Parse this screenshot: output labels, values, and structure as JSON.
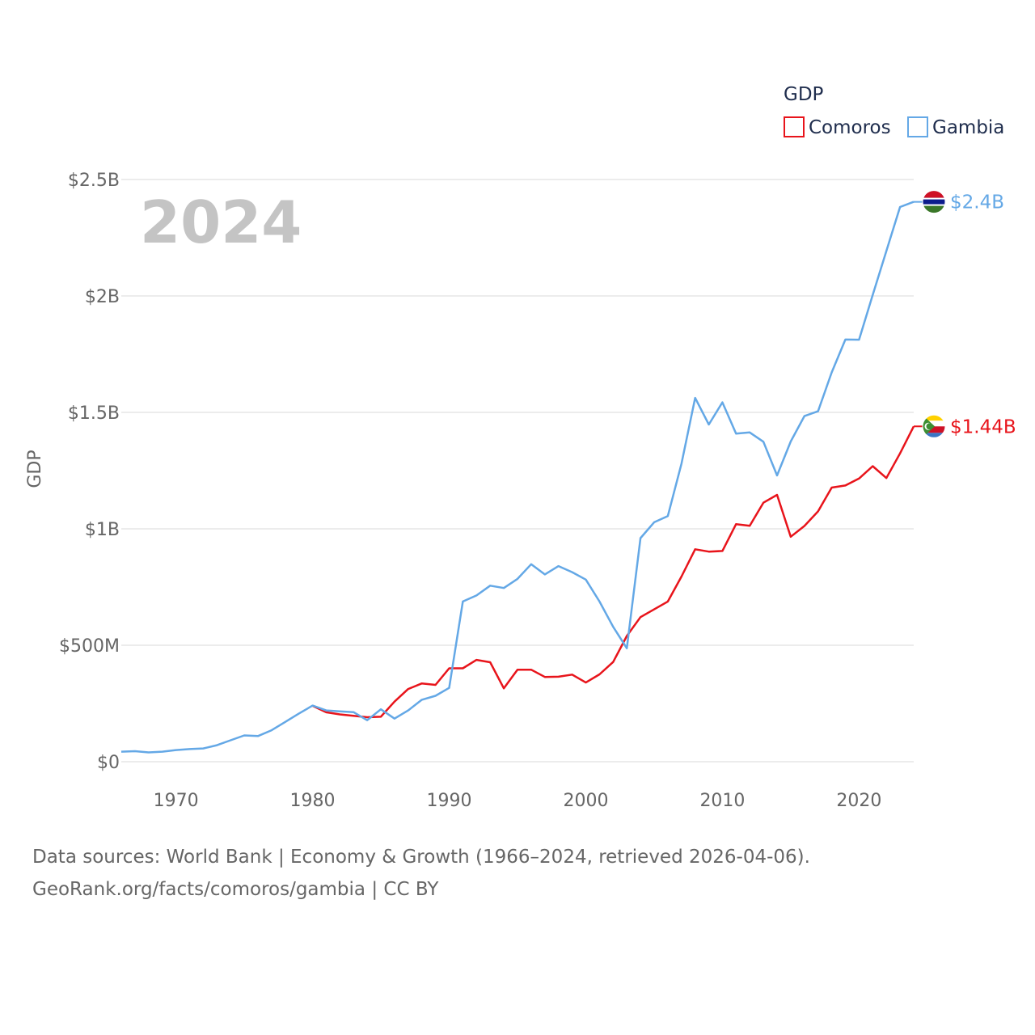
{
  "chart_data": {
    "type": "line",
    "title": "GDP",
    "ylabel": "GDP",
    "year_label": "2024",
    "ylim": [
      0,
      2500000000
    ],
    "xlim": [
      1966,
      2024
    ],
    "y_ticks": [
      {
        "value": 0,
        "label": "$0"
      },
      {
        "value": 500000000,
        "label": "$500M"
      },
      {
        "value": 1000000000,
        "label": "$1B"
      },
      {
        "value": 1500000000,
        "label": "$1.5B"
      },
      {
        "value": 2000000000,
        "label": "$2B"
      },
      {
        "value": 2500000000,
        "label": "$2.5B"
      }
    ],
    "x_ticks": [
      {
        "value": 1970,
        "label": "1970"
      },
      {
        "value": 1980,
        "label": "1980"
      },
      {
        "value": 1990,
        "label": "1990"
      },
      {
        "value": 2000,
        "label": "2000"
      },
      {
        "value": 2010,
        "label": "2010"
      },
      {
        "value": 2020,
        "label": "2020"
      }
    ],
    "legend": {
      "title": "GDP",
      "position": "top-right"
    },
    "series": [
      {
        "name": "Comoros",
        "color": "#e8141b",
        "end_label": "$1.44B",
        "flag": "comoros-flag",
        "points": [
          [
            1980,
            240000000
          ],
          [
            1981,
            212000000
          ],
          [
            1982,
            203000000
          ],
          [
            1983,
            197000000
          ],
          [
            1984,
            191000000
          ],
          [
            1985,
            193000000
          ],
          [
            1986,
            258000000
          ],
          [
            1987,
            312000000
          ],
          [
            1988,
            336000000
          ],
          [
            1989,
            330000000
          ],
          [
            1990,
            401000000
          ],
          [
            1991,
            401000000
          ],
          [
            1992,
            437000000
          ],
          [
            1993,
            427000000
          ],
          [
            1994,
            315000000
          ],
          [
            1995,
            395000000
          ],
          [
            1996,
            395000000
          ],
          [
            1997,
            364000000
          ],
          [
            1998,
            365000000
          ],
          [
            1999,
            374000000
          ],
          [
            2000,
            340000000
          ],
          [
            2001,
            375000000
          ],
          [
            2002,
            428000000
          ],
          [
            2003,
            540000000
          ],
          [
            2004,
            621000000
          ],
          [
            2005,
            654000000
          ],
          [
            2006,
            688000000
          ],
          [
            2007,
            795000000
          ],
          [
            2008,
            912000000
          ],
          [
            2009,
            902000000
          ],
          [
            2010,
            905000000
          ],
          [
            2011,
            1020000000
          ],
          [
            2012,
            1013000000
          ],
          [
            2013,
            1112000000
          ],
          [
            2014,
            1146000000
          ],
          [
            2015,
            966000000
          ],
          [
            2016,
            1012000000
          ],
          [
            2017,
            1075000000
          ],
          [
            2018,
            1177000000
          ],
          [
            2019,
            1186000000
          ],
          [
            2020,
            1216000000
          ],
          [
            2021,
            1269000000
          ],
          [
            2022,
            1218000000
          ],
          [
            2023,
            1324000000
          ],
          [
            2024,
            1440000000
          ]
        ]
      },
      {
        "name": "Gambia",
        "color": "#64a8e6",
        "end_label": "$2.4B",
        "flag": "gambia-flag",
        "points": [
          [
            1966,
            43000000
          ],
          [
            1967,
            45000000
          ],
          [
            1968,
            40000000
          ],
          [
            1969,
            43000000
          ],
          [
            1970,
            50000000
          ],
          [
            1971,
            54000000
          ],
          [
            1972,
            57000000
          ],
          [
            1973,
            71000000
          ],
          [
            1974,
            92000000
          ],
          [
            1975,
            113000000
          ],
          [
            1976,
            110000000
          ],
          [
            1977,
            135000000
          ],
          [
            1978,
            171000000
          ],
          [
            1979,
            207000000
          ],
          [
            1980,
            241000000
          ],
          [
            1981,
            220000000
          ],
          [
            1982,
            216000000
          ],
          [
            1983,
            213000000
          ],
          [
            1984,
            178000000
          ],
          [
            1985,
            225000000
          ],
          [
            1986,
            185000000
          ],
          [
            1987,
            220000000
          ],
          [
            1988,
            266000000
          ],
          [
            1989,
            283000000
          ],
          [
            1990,
            317000000
          ],
          [
            1991,
            688000000
          ],
          [
            1992,
            714000000
          ],
          [
            1993,
            756000000
          ],
          [
            1994,
            746000000
          ],
          [
            1995,
            785000000
          ],
          [
            1996,
            848000000
          ],
          [
            1997,
            804000000
          ],
          [
            1998,
            840000000
          ],
          [
            1999,
            814000000
          ],
          [
            2000,
            782000000
          ],
          [
            2001,
            688000000
          ],
          [
            2002,
            579000000
          ],
          [
            2003,
            487000000
          ],
          [
            2004,
            960000000
          ],
          [
            2005,
            1028000000
          ],
          [
            2006,
            1055000000
          ],
          [
            2007,
            1280000000
          ],
          [
            2008,
            1562000000
          ],
          [
            2009,
            1448000000
          ],
          [
            2010,
            1543000000
          ],
          [
            2011,
            1409000000
          ],
          [
            2012,
            1414000000
          ],
          [
            2013,
            1374000000
          ],
          [
            2014,
            1229000000
          ],
          [
            2015,
            1375000000
          ],
          [
            2016,
            1484000000
          ],
          [
            2017,
            1505000000
          ],
          [
            2018,
            1672000000
          ],
          [
            2019,
            1813000000
          ],
          [
            2020,
            1812000000
          ],
          [
            2021,
            2004000000
          ],
          [
            2022,
            2193000000
          ],
          [
            2023,
            2382000000
          ],
          [
            2024,
            2404000000
          ]
        ]
      }
    ]
  },
  "footer": {
    "line1": "Data sources: World Bank | Economy & Growth (1966–2024, retrieved 2026-04-06).",
    "line2": "GeoRank.org/facts/comoros/gambia | CC BY"
  }
}
